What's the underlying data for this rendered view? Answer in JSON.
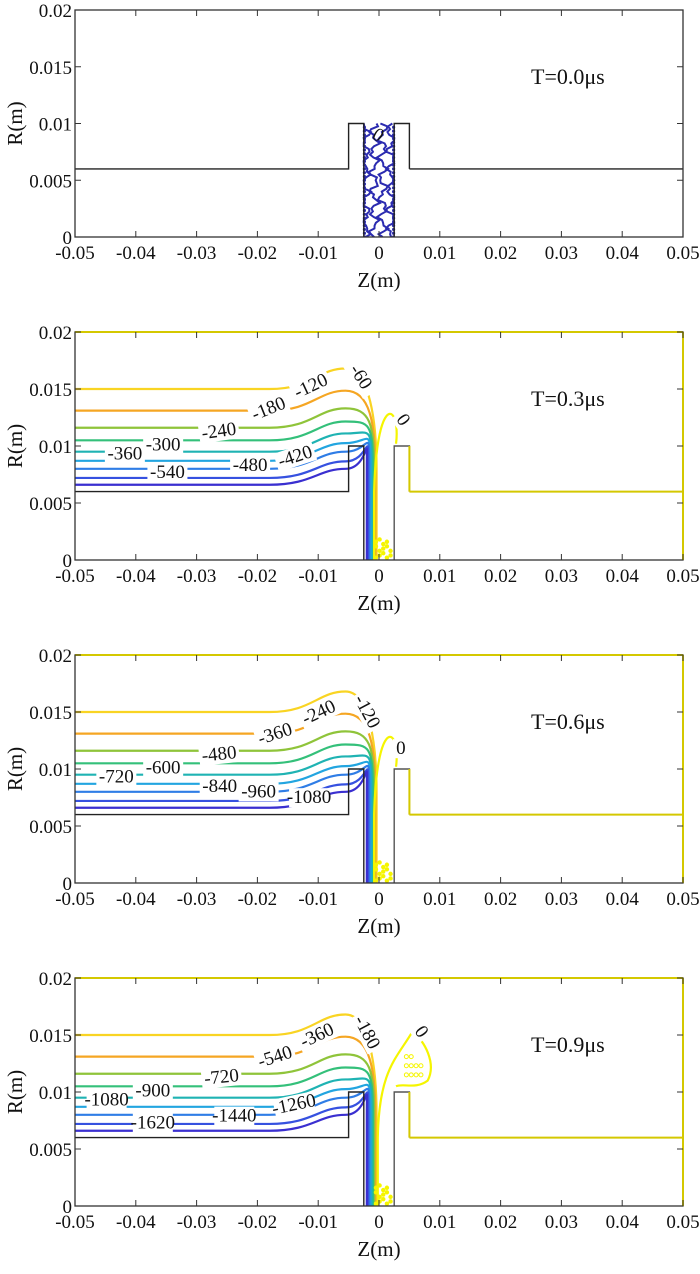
{
  "chart_data": [
    {
      "type": "line",
      "subtype": "contour",
      "annotation": "T=0.0μs",
      "xlabel": "Z(m)",
      "ylabel": "R(m)",
      "xlim": [
        -0.05,
        0.05
      ],
      "ylim": [
        0,
        0.02
      ],
      "xticks": [
        "-0.05",
        "-0.04",
        "-0.03",
        "-0.02",
        "-0.01",
        "0",
        "0.01",
        "0.02",
        "0.03",
        "0.04",
        "0.05"
      ],
      "yticks": [
        "0",
        "0.005",
        "0.01",
        "0.015",
        "0.02"
      ],
      "contour_levels": [
        {
          "value": "0",
          "color": "#2b2bb0",
          "label_at": [
            -0.0005,
            0.0085
          ]
        }
      ],
      "boundary_color": "#000000"
    },
    {
      "type": "line",
      "subtype": "contour",
      "annotation": "T=0.3μs",
      "xlabel": "Z(m)",
      "ylabel": "R(m)",
      "xlim": [
        -0.05,
        0.05
      ],
      "ylim": [
        0,
        0.02
      ],
      "xticks": [
        "-0.05",
        "-0.04",
        "-0.03",
        "-0.02",
        "-0.01",
        "0",
        "0.01",
        "0.02",
        "0.03",
        "0.04",
        "0.05"
      ],
      "yticks": [
        "0",
        "0.005",
        "0.01",
        "0.015",
        "0.02"
      ],
      "contour_levels": [
        {
          "value": "-60",
          "r_far": 0.015,
          "color": "#f9d423"
        },
        {
          "value": "-120",
          "r_far": 0.0131,
          "color": "#f5a623"
        },
        {
          "value": "-180",
          "r_far": 0.0116,
          "color": "#8fc43a"
        },
        {
          "value": "-240",
          "r_far": 0.0105,
          "color": "#34c07a"
        },
        {
          "value": "-300",
          "r_far": 0.0095,
          "color": "#1fb3b3"
        },
        {
          "value": "-360",
          "r_far": 0.0087,
          "color": "#22a5e0"
        },
        {
          "value": "-420",
          "r_far": 0.008,
          "color": "#2f7de6"
        },
        {
          "value": "-480",
          "r_far": 0.0072,
          "color": "#3651e0"
        },
        {
          "value": "-540",
          "r_far": 0.0066,
          "color": "#3a2fd0"
        },
        {
          "value": "0",
          "color": "#f5f500"
        }
      ],
      "labels": [
        {
          "text": "-60",
          "at": [
            -0.0038,
            0.0158
          ],
          "rot": 58
        },
        {
          "text": "-120",
          "at": [
            -0.0108,
            0.0148
          ],
          "rot": -25
        },
        {
          "text": "-180",
          "at": [
            -0.0178,
            0.0128
          ],
          "rot": -22
        },
        {
          "text": "-240",
          "at": [
            -0.0262,
            0.0108
          ],
          "rot": -8
        },
        {
          "text": "-300",
          "at": [
            -0.0355,
            0.0096
          ],
          "rot": 0
        },
        {
          "text": "-360",
          "at": [
            -0.0418,
            0.0088
          ],
          "rot": 0
        },
        {
          "text": "-420",
          "at": [
            -0.0135,
            0.0086
          ],
          "rot": -18
        },
        {
          "text": "-480",
          "at": [
            -0.0212,
            0.0078
          ],
          "rot": 0
        },
        {
          "text": "-540",
          "at": [
            -0.0348,
            0.0072
          ],
          "rot": 0
        },
        {
          "text": "0",
          "at": [
            0.0032,
            0.012
          ],
          "rot": 55
        }
      ],
      "boundary_color": "#d4c800"
    },
    {
      "type": "line",
      "subtype": "contour",
      "annotation": "T=0.6μs",
      "xlabel": "Z(m)",
      "ylabel": "R(m)",
      "xlim": [
        -0.05,
        0.05
      ],
      "ylim": [
        0,
        0.02
      ],
      "xticks": [
        "-0.05",
        "-0.04",
        "-0.03",
        "-0.02",
        "-0.01",
        "0",
        "0.01",
        "0.02",
        "0.03",
        "0.04",
        "0.05"
      ],
      "yticks": [
        "0",
        "0.005",
        "0.01",
        "0.015",
        "0.02"
      ],
      "contour_levels": [
        {
          "value": "-120",
          "r_far": 0.015,
          "color": "#f9d423"
        },
        {
          "value": "-240",
          "r_far": 0.0131,
          "color": "#f5a623"
        },
        {
          "value": "-360",
          "r_far": 0.0116,
          "color": "#8fc43a"
        },
        {
          "value": "-480",
          "r_far": 0.0105,
          "color": "#34c07a"
        },
        {
          "value": "-600",
          "r_far": 0.0095,
          "color": "#1fb3b3"
        },
        {
          "value": "-720",
          "r_far": 0.0087,
          "color": "#22a5e0"
        },
        {
          "value": "-840",
          "r_far": 0.008,
          "color": "#2f7de6"
        },
        {
          "value": "-960",
          "r_far": 0.0072,
          "color": "#3651e0"
        },
        {
          "value": "-1080",
          "r_far": 0.0066,
          "color": "#3a2fd0"
        },
        {
          "value": "0",
          "color": "#f5f500"
        }
      ],
      "labels": [
        {
          "text": "-120",
          "at": [
            -0.0028,
            0.0148
          ],
          "rot": 62
        },
        {
          "text": "-240",
          "at": [
            -0.0095,
            0.0145
          ],
          "rot": -25
        },
        {
          "text": "-360",
          "at": [
            -0.0168,
            0.0126
          ],
          "rot": -18
        },
        {
          "text": "-480",
          "at": [
            -0.0262,
            0.0108
          ],
          "rot": -6
        },
        {
          "text": "-600",
          "at": [
            -0.0355,
            0.0096
          ],
          "rot": 0
        },
        {
          "text": "-720",
          "at": [
            -0.0432,
            0.0088
          ],
          "rot": 0
        },
        {
          "text": "-840",
          "at": [
            -0.0262,
            0.008
          ],
          "rot": 0
        },
        {
          "text": "-960",
          "at": [
            -0.0198,
            0.0075
          ],
          "rot": 0
        },
        {
          "text": "-1080",
          "at": [
            -0.0115,
            0.007
          ],
          "rot": 0
        },
        {
          "text": "0",
          "at": [
            0.0036,
            0.0113
          ],
          "rot": 0
        }
      ],
      "boundary_color": "#d4c800"
    },
    {
      "type": "line",
      "subtype": "contour",
      "annotation": "T=0.9μs",
      "xlabel": "Z(m)",
      "ylabel": "R(m)",
      "xlim": [
        -0.05,
        0.05
      ],
      "ylim": [
        0,
        0.02
      ],
      "xticks": [
        "-0.05",
        "-0.04",
        "-0.03",
        "-0.02",
        "-0.01",
        "0",
        "0.01",
        "0.02",
        "0.03",
        "0.04",
        "0.05"
      ],
      "yticks": [
        "0",
        "0.005",
        "0.01",
        "0.015",
        "0.02"
      ],
      "contour_levels": [
        {
          "value": "-180",
          "r_far": 0.015,
          "color": "#f9d423"
        },
        {
          "value": "-360",
          "r_far": 0.0131,
          "color": "#f5a623"
        },
        {
          "value": "-540",
          "r_far": 0.0116,
          "color": "#8fc43a"
        },
        {
          "value": "-720",
          "r_far": 0.0105,
          "color": "#34c07a"
        },
        {
          "value": "-900",
          "r_far": 0.0095,
          "color": "#1fb3b3"
        },
        {
          "value": "-1080",
          "r_far": 0.0087,
          "color": "#22a5e0"
        },
        {
          "value": "-1260",
          "r_far": 0.008,
          "color": "#2f7de6"
        },
        {
          "value": "-1440",
          "r_far": 0.0072,
          "color": "#3651e0"
        },
        {
          "value": "-1620",
          "r_far": 0.0066,
          "color": "#3a2fd0"
        },
        {
          "value": "0",
          "color": "#f5f500"
        }
      ],
      "labels": [
        {
          "text": "-180",
          "at": [
            -0.0028,
            0.015
          ],
          "rot": 62
        },
        {
          "text": "-360",
          "at": [
            -0.0098,
            0.0145
          ],
          "rot": -25
        },
        {
          "text": "-540",
          "at": [
            -0.0168,
            0.0126
          ],
          "rot": -18
        },
        {
          "text": "-720",
          "at": [
            -0.0258,
            0.0108
          ],
          "rot": -6
        },
        {
          "text": "-900",
          "at": [
            -0.0372,
            0.0096
          ],
          "rot": 0
        },
        {
          "text": "-1080",
          "at": [
            -0.0448,
            0.0088
          ],
          "rot": 0
        },
        {
          "text": "-1260",
          "at": [
            -0.0138,
            0.0084
          ],
          "rot": -12
        },
        {
          "text": "-1440",
          "at": [
            -0.0238,
            0.0074
          ],
          "rot": 0
        },
        {
          "text": "-1620",
          "at": [
            -0.0372,
            0.0068
          ],
          "rot": 0
        },
        {
          "text": "0",
          "at": [
            0.0062,
            0.015
          ],
          "rot": 55
        }
      ],
      "boundary_color": "#d4c800"
    }
  ]
}
